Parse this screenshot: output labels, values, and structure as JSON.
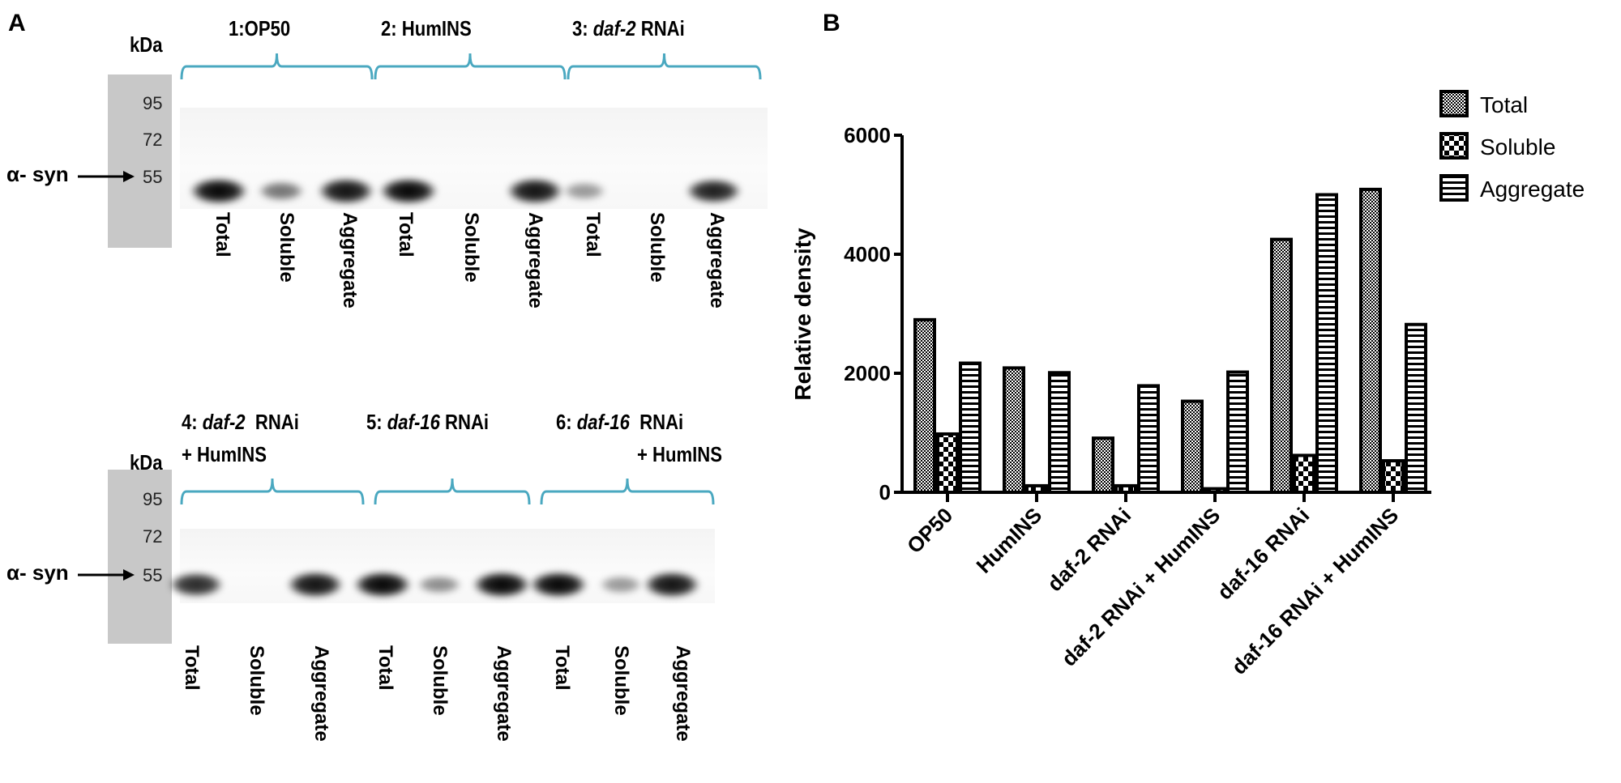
{
  "panel_a": {
    "letter": "A",
    "kda_label": "kDa",
    "markers": [
      "95",
      "72",
      "55"
    ],
    "target_label": "α- syn",
    "top_groups": [
      {
        "prefix": "1:OP50",
        "italic": "",
        "suffix": "",
        "line2": ""
      },
      {
        "prefix": "2: HumINS",
        "italic": "",
        "suffix": "",
        "line2": ""
      },
      {
        "prefix": "3: ",
        "italic": "daf-2",
        "suffix": " RNAi",
        "line2": ""
      }
    ],
    "bottom_groups": [
      {
        "prefix": "4: ",
        "italic": "daf-2",
        "suffix": "  RNAi",
        "line2": "+ HumINS"
      },
      {
        "prefix": "5: ",
        "italic": "daf-16",
        "suffix": " RNAi",
        "line2": ""
      },
      {
        "prefix": "6: ",
        "italic": "daf-16",
        "suffix": "  RNAi",
        "line2": "+ HumINS"
      }
    ],
    "lane_labels": [
      "Total",
      "Soluble",
      "Aggregate",
      "Total",
      "Soluble",
      "Aggregate",
      "Total",
      "Soluble",
      "Aggregate"
    ],
    "top_band_intensity": [
      1.0,
      0.55,
      0.95,
      1.0,
      0.0,
      0.95,
      0.4,
      0.0,
      0.9
    ],
    "bottom_band_intensity": [
      0.85,
      0.0,
      0.95,
      1.0,
      0.45,
      1.0,
      1.0,
      0.4,
      0.95
    ],
    "bracket_color": "#4aa8c0"
  },
  "chart_data": {
    "panel_letter": "B",
    "type": "bar",
    "title": "",
    "xlabel": "",
    "ylabel": "Relative density",
    "ylim": [
      0,
      6000
    ],
    "yticks": [
      "0",
      "2000",
      "4000",
      "6000"
    ],
    "grid": false,
    "legend_position": "top-right",
    "categories": [
      "OP50",
      "HumINS",
      "daf-2 RNAi",
      "daf-2 RNAi + HumINS",
      "daf-16 RNAi",
      "daf-16 RNAi + HumINS"
    ],
    "series": [
      {
        "name": "Total",
        "pattern": "fine-checker",
        "values": [
          2900,
          2090,
          910,
          1530,
          4250,
          5090
        ]
      },
      {
        "name": "Soluble",
        "pattern": "coarse-checker",
        "values": [
          980,
          110,
          110,
          60,
          620,
          530
        ]
      },
      {
        "name": "Aggregate",
        "pattern": "horizontal-lines",
        "values": [
          2170,
          2010,
          1790,
          2020,
          5000,
          2820
        ]
      }
    ]
  }
}
